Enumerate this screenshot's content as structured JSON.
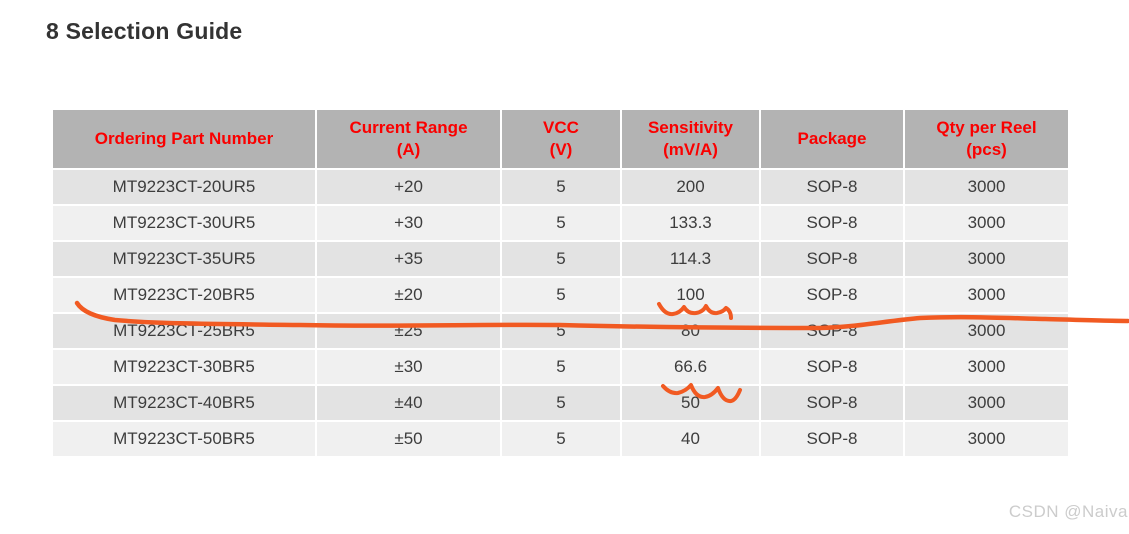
{
  "page": {
    "title": "8 Selection Guide",
    "watermark": "CSDN @Naiva"
  },
  "table": {
    "columns": [
      "Ordering Part Number",
      "Current Range\n(A)",
      "VCC\n(V)",
      "Sensitivity\n(mV/A)",
      "Package",
      "Qty per Reel\n(pcs)"
    ],
    "rows": [
      [
        "MT9223CT-20UR5",
        "+20",
        "5",
        "200",
        "SOP-8",
        "3000"
      ],
      [
        "MT9223CT-30UR5",
        "+30",
        "5",
        "133.3",
        "SOP-8",
        "3000"
      ],
      [
        "MT9223CT-35UR5",
        "+35",
        "5",
        "114.3",
        "SOP-8",
        "3000"
      ],
      [
        "MT9223CT-20BR5",
        "±20",
        "5",
        "100",
        "SOP-8",
        "3000"
      ],
      [
        "MT9223CT-25BR5",
        "±25",
        "5",
        "80",
        "SOP-8",
        "3000"
      ],
      [
        "MT9223CT-30BR5",
        "±30",
        "5",
        "66.6",
        "SOP-8",
        "3000"
      ],
      [
        "MT9223CT-40BR5",
        "±40",
        "5",
        "50",
        "SOP-8",
        "3000"
      ],
      [
        "MT9223CT-50BR5",
        "±50",
        "5",
        "40",
        "SOP-8",
        "3000"
      ]
    ]
  },
  "annotations": {
    "items": [
      {
        "type": "freehand-line",
        "starts_at_row": "MT9223CT-20BR5"
      },
      {
        "type": "squiggle",
        "under_value": "100"
      },
      {
        "type": "squiggle",
        "under_value": "66.6"
      }
    ]
  },
  "colors": {
    "header_bg": "#b3b3b3",
    "header_text": "#fa0000",
    "row_odd_bg": "#e3e3e3",
    "row_even_bg": "#f0f0f0",
    "body_text": "#3d3d3d",
    "title_text": "#333333",
    "annotation_orange": "#f15a22",
    "watermark_text": "#cccccc"
  }
}
